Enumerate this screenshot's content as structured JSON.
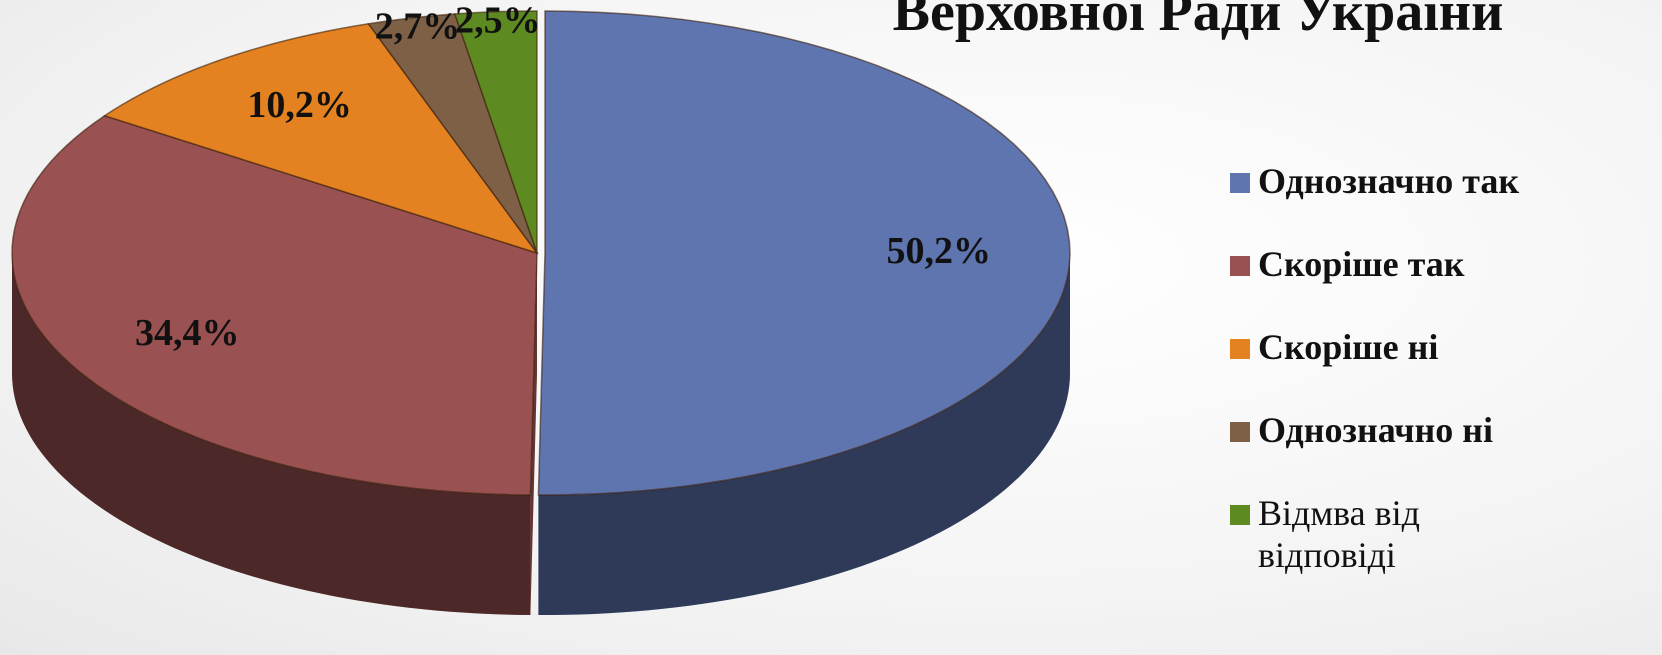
{
  "chart_data": {
    "type": "pie",
    "title": "Верховної Ради України",
    "categories": [
      "Однозначно так",
      "Скоріше так",
      "Скоріше ні",
      "Однозначно ні",
      "Відмва від відповіді"
    ],
    "values": [
      50.2,
      34.4,
      10.2,
      2.7,
      2.5
    ],
    "value_labels": [
      "50,2%",
      "34,4%",
      "10,2%",
      "2,7%",
      "2,5%"
    ],
    "colors": [
      "#5e75b0",
      "#995251",
      "#e48221",
      "#7d6046",
      "#5e8a22"
    ],
    "legend": "right"
  }
}
